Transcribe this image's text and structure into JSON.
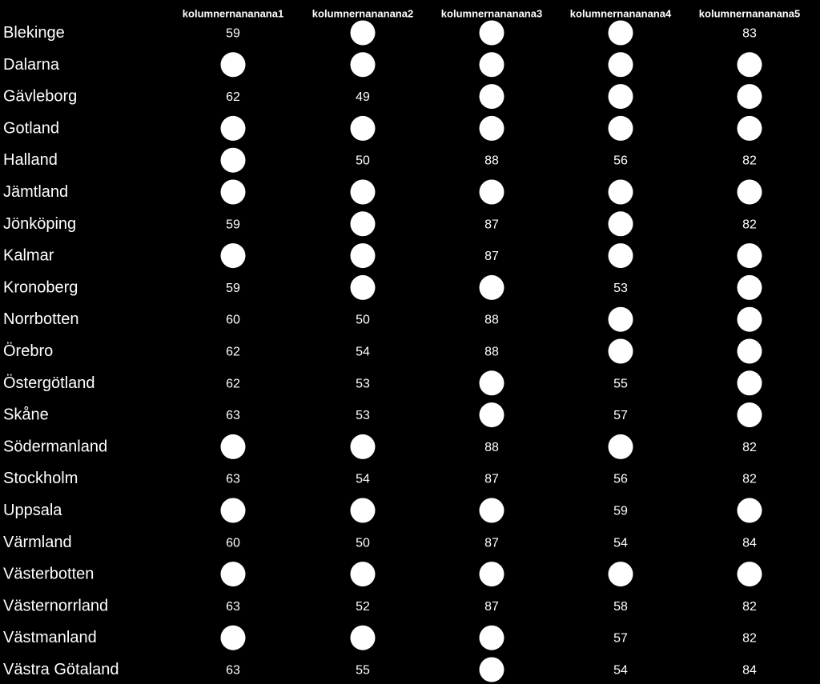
{
  "chart_data": {
    "type": "table",
    "background": "#000000",
    "text_color": "#ffffff",
    "missing_marker_color": "#ffffff",
    "missing_marker_shape": "filled-circle",
    "columns": [
      "kolumnernananana1",
      "kolumnernananana2",
      "kolumnernananana3",
      "kolumnernananana4",
      "kolumnernananana5"
    ],
    "rows": [
      {
        "label": "Blekinge",
        "values": [
          59,
          null,
          null,
          null,
          83
        ]
      },
      {
        "label": "Dalarna",
        "values": [
          null,
          null,
          null,
          null,
          null
        ]
      },
      {
        "label": "Gävleborg",
        "values": [
          62,
          49,
          null,
          null,
          null
        ]
      },
      {
        "label": "Gotland",
        "values": [
          null,
          null,
          null,
          null,
          null
        ]
      },
      {
        "label": "Halland",
        "values": [
          null,
          50,
          88,
          56,
          82
        ]
      },
      {
        "label": "Jämtland",
        "values": [
          null,
          null,
          null,
          null,
          null
        ]
      },
      {
        "label": "Jönköping",
        "values": [
          59,
          null,
          87,
          null,
          82
        ]
      },
      {
        "label": "Kalmar",
        "values": [
          null,
          null,
          87,
          null,
          null
        ]
      },
      {
        "label": "Kronoberg",
        "values": [
          59,
          null,
          null,
          53,
          null
        ]
      },
      {
        "label": "Norrbotten",
        "values": [
          60,
          50,
          88,
          null,
          null
        ]
      },
      {
        "label": "Örebro",
        "values": [
          62,
          54,
          88,
          null,
          null
        ]
      },
      {
        "label": "Östergötland",
        "values": [
          62,
          53,
          null,
          55,
          null
        ]
      },
      {
        "label": "Skåne",
        "values": [
          63,
          53,
          null,
          57,
          null
        ]
      },
      {
        "label": "Södermanland",
        "values": [
          null,
          null,
          88,
          null,
          82
        ]
      },
      {
        "label": "Stockholm",
        "values": [
          63,
          54,
          87,
          56,
          82
        ]
      },
      {
        "label": "Uppsala",
        "values": [
          null,
          null,
          null,
          59,
          null
        ]
      },
      {
        "label": "Värmland",
        "values": [
          60,
          50,
          87,
          54,
          84
        ]
      },
      {
        "label": "Västerbotten",
        "values": [
          null,
          null,
          null,
          null,
          null
        ]
      },
      {
        "label": "Västernorrland",
        "values": [
          63,
          52,
          87,
          58,
          82
        ]
      },
      {
        "label": "Västmanland",
        "values": [
          null,
          null,
          null,
          57,
          82
        ]
      },
      {
        "label": "Västra Götaland",
        "values": [
          63,
          55,
          null,
          54,
          84
        ]
      }
    ]
  }
}
